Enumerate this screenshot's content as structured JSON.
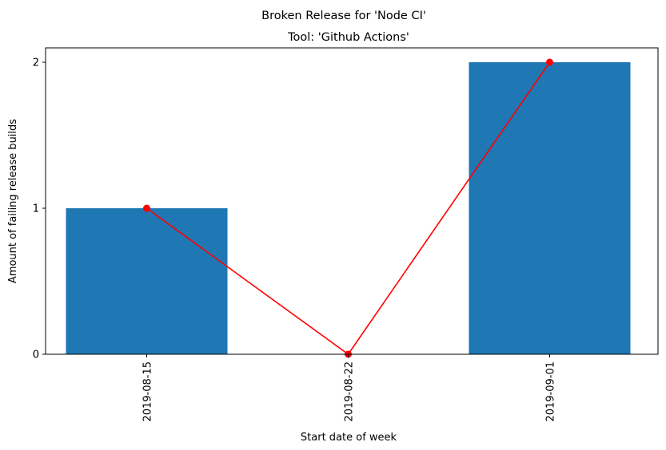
{
  "chart_data": {
    "type": "bar",
    "suptitle": "Broken Release for 'Node CI'",
    "title": "Tool: 'Github Actions'",
    "xlabel": "Start date of week",
    "ylabel": "Amount of failing release builds",
    "categories": [
      "2019-08-15",
      "2019-08-22",
      "2019-09-01"
    ],
    "series": [
      {
        "kind": "bar",
        "values": [
          1,
          0,
          2
        ],
        "color": "#1f77b4"
      },
      {
        "kind": "line",
        "values": [
          1,
          0,
          2
        ],
        "color": "#ff0000",
        "marker": "circle"
      }
    ],
    "yticks": [
      0,
      1,
      2
    ],
    "ylim": [
      0,
      2.1
    ],
    "grid": false
  }
}
